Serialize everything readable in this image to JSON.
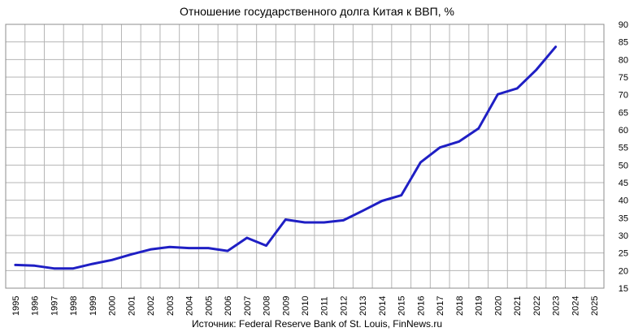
{
  "chart_data": {
    "type": "line",
    "title": "Отношение государственного долга Китая к ВВП, %",
    "source": "Источник: Federal Reserve Bank of St. Louis, FinNews.ru",
    "xlabel": "",
    "ylabel": "",
    "x_ticks": [
      "1995",
      "1996",
      "1997",
      "1998",
      "1999",
      "2000",
      "2001",
      "2002",
      "2003",
      "2004",
      "2005",
      "2006",
      "2007",
      "2008",
      "2009",
      "2010",
      "2011",
      "2012",
      "2013",
      "2014",
      "2015",
      "2016",
      "2017",
      "2018",
      "2019",
      "2020",
      "2021",
      "2022",
      "2023",
      "2024",
      "2025"
    ],
    "y_ticks": [
      15,
      20,
      25,
      30,
      35,
      40,
      45,
      50,
      55,
      60,
      65,
      70,
      75,
      80,
      85,
      90
    ],
    "ylim": [
      15,
      90
    ],
    "grid": true,
    "y_axis_position": "right",
    "series": [
      {
        "color": "#1f1fc4",
        "x": [
          1995,
          1996,
          1997,
          1998,
          1999,
          2000,
          2001,
          2002,
          2003,
          2004,
          2005,
          2006,
          2007,
          2008,
          2009,
          2010,
          2011,
          2012,
          2013,
          2014,
          2015,
          2016,
          2017,
          2018,
          2019,
          2020,
          2021,
          2022,
          2023
        ],
        "values": [
          21.6,
          21.4,
          20.6,
          20.6,
          21.9,
          23.0,
          24.6,
          26.0,
          26.7,
          26.4,
          26.4,
          25.6,
          29.3,
          27.1,
          34.5,
          33.7,
          33.7,
          34.3,
          37.0,
          39.8,
          41.4,
          50.8,
          55.0,
          56.7,
          60.4,
          70.1,
          71.8,
          77.1,
          83.6
        ]
      }
    ]
  }
}
